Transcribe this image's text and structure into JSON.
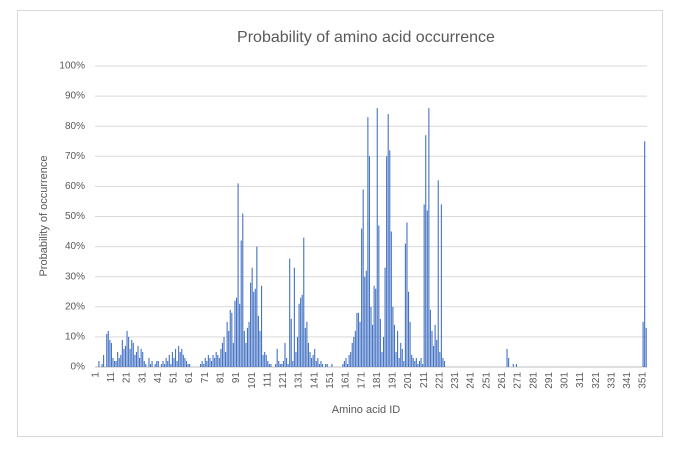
{
  "chart_data": {
    "type": "bar",
    "title": "Probability of amino acid occurrence",
    "x_label": "Amino acid ID",
    "y_label": "Probability of occurrence",
    "color": "#4472c4",
    "grid": true,
    "ylim": [
      0,
      100
    ],
    "yticks": [
      {
        "value": 0,
        "label": "0%"
      },
      {
        "value": 10,
        "label": "10%"
      },
      {
        "value": 20,
        "label": "20%"
      },
      {
        "value": 30,
        "label": "30%"
      },
      {
        "value": 40,
        "label": "40%"
      },
      {
        "value": 50,
        "label": "50%"
      },
      {
        "value": 60,
        "label": "60%"
      },
      {
        "value": 70,
        "label": "70%"
      },
      {
        "value": 80,
        "label": "80%"
      },
      {
        "value": 90,
        "label": "90%"
      },
      {
        "value": 100,
        "label": "100%"
      }
    ],
    "categories": [
      "1",
      null,
      null,
      null,
      null,
      null,
      null,
      null,
      null,
      null,
      "11",
      null,
      null,
      null,
      null,
      null,
      null,
      null,
      null,
      null,
      "21",
      null,
      null,
      null,
      null,
      null,
      null,
      null,
      null,
      null,
      "31",
      null,
      null,
      null,
      null,
      null,
      null,
      null,
      null,
      null,
      "41",
      null,
      null,
      null,
      null,
      null,
      null,
      null,
      null,
      null,
      "51",
      null,
      null,
      null,
      null,
      null,
      null,
      null,
      null,
      null,
      "61",
      null,
      null,
      null,
      null,
      null,
      null,
      null,
      null,
      null,
      "71",
      null,
      null,
      null,
      null,
      null,
      null,
      null,
      null,
      null,
      "81",
      null,
      null,
      null,
      null,
      null,
      null,
      null,
      null,
      null,
      "91",
      null,
      null,
      null,
      null,
      null,
      null,
      null,
      null,
      null,
      "101",
      null,
      null,
      null,
      null,
      null,
      null,
      null,
      null,
      null,
      "111",
      null,
      null,
      null,
      null,
      null,
      null,
      null,
      null,
      null,
      "121",
      null,
      null,
      null,
      null,
      null,
      null,
      null,
      null,
      null,
      "131",
      null,
      null,
      null,
      null,
      null,
      null,
      null,
      null,
      null,
      "141",
      null,
      null,
      null,
      null,
      null,
      null,
      null,
      null,
      null,
      "151",
      null,
      null,
      null,
      null,
      null,
      null,
      null,
      null,
      null,
      "161",
      null,
      null,
      null,
      null,
      null,
      null,
      null,
      null,
      null,
      "171",
      null,
      null,
      null,
      null,
      null,
      null,
      null,
      null,
      null,
      "181",
      null,
      null,
      null,
      null,
      null,
      null,
      null,
      null,
      null,
      "191",
      null,
      null,
      null,
      null,
      null,
      null,
      null,
      null,
      null,
      "201",
      null,
      null,
      null,
      null,
      null,
      null,
      null,
      null,
      null,
      "211",
      null,
      null,
      null,
      null,
      null,
      null,
      null,
      null,
      null,
      "221",
      null,
      null,
      null,
      null,
      null,
      null,
      null,
      null,
      null,
      "231",
      null,
      null,
      null,
      null,
      null,
      null,
      null,
      null,
      null,
      "241",
      null,
      null,
      null,
      null,
      null,
      null,
      null,
      null,
      null,
      "251",
      null,
      null,
      null,
      null,
      null,
      null,
      null,
      null,
      null,
      "261",
      null,
      null,
      null,
      null,
      null,
      null,
      null,
      null,
      null,
      "271",
      null,
      null,
      null,
      null,
      null,
      null,
      null,
      null,
      null,
      "281",
      null,
      null,
      null,
      null,
      null,
      null,
      null,
      null,
      null,
      "291",
      null,
      null,
      null,
      null,
      null,
      null,
      null,
      null,
      null,
      "301",
      null,
      null,
      null,
      null,
      null,
      null,
      null,
      null,
      null,
      "311",
      null,
      null,
      null,
      null,
      null,
      null,
      null,
      null,
      null,
      "321",
      null,
      null,
      null,
      null,
      null,
      null,
      null,
      null,
      null,
      "331",
      null,
      null,
      null,
      null,
      null,
      null,
      null,
      null,
      null,
      "341",
      null,
      null,
      null,
      null,
      null,
      null,
      null,
      null,
      null,
      "351",
      null,
      null
    ],
    "values": [
      0,
      0,
      2,
      0,
      1,
      4,
      0,
      11,
      12,
      9,
      8,
      3,
      2,
      2,
      5,
      3,
      4,
      9,
      6,
      7,
      12,
      10,
      6,
      9,
      8,
      4,
      5,
      7,
      3,
      6,
      5,
      2,
      1,
      0,
      3,
      1,
      2,
      0,
      1,
      2,
      2,
      0,
      1,
      2,
      1,
      3,
      2,
      4,
      1,
      5,
      3,
      6,
      2,
      7,
      5,
      6,
      4,
      3,
      2,
      1,
      1,
      0,
      0,
      0,
      0,
      0,
      0,
      1,
      2,
      1,
      3,
      2,
      4,
      3,
      2,
      4,
      3,
      5,
      4,
      3,
      6,
      8,
      10,
      5,
      15,
      12,
      19,
      18,
      8,
      22,
      23,
      61,
      21,
      42,
      51,
      12,
      8,
      13,
      15,
      28,
      33,
      25,
      26,
      40,
      17,
      12,
      27,
      4,
      5,
      4,
      2,
      1,
      1,
      0,
      0,
      1,
      6,
      2,
      1,
      1,
      2,
      8,
      3,
      1,
      36,
      16,
      2,
      33,
      5,
      10,
      21,
      23,
      24,
      43,
      13,
      15,
      8,
      5,
      3,
      4,
      6,
      2,
      3,
      1,
      2,
      1,
      0,
      1,
      1,
      0,
      0,
      1,
      0,
      0,
      0,
      0,
      0,
      0,
      1,
      2,
      3,
      1,
      4,
      5,
      8,
      10,
      12,
      18,
      18,
      15,
      46,
      59,
      30,
      32,
      83,
      70,
      20,
      14,
      27,
      26,
      86,
      47,
      16,
      5,
      10,
      33,
      70,
      84,
      72,
      45,
      20,
      14,
      5,
      12,
      3,
      8,
      6,
      2,
      41,
      48,
      25,
      15,
      4,
      3,
      2,
      3,
      1,
      2,
      3,
      1,
      54,
      77,
      52,
      86,
      19,
      12,
      7,
      14,
      9,
      62,
      5,
      54,
      3,
      2,
      0,
      0,
      0,
      0,
      0,
      0,
      0,
      0,
      0,
      0,
      0,
      0,
      0,
      0,
      0,
      0,
      0,
      0,
      0,
      0,
      0,
      0,
      0,
      0,
      0,
      0,
      0,
      0,
      0,
      0,
      0,
      0,
      0,
      0,
      0,
      0,
      0,
      0,
      0,
      6,
      3,
      0,
      0,
      1,
      0,
      1,
      0,
      0,
      0,
      0,
      0,
      0,
      0,
      0,
      0,
      0,
      0,
      0,
      0,
      0,
      0,
      0,
      0,
      0,
      0,
      0,
      0,
      0,
      0,
      0,
      0,
      0,
      0,
      0,
      0,
      0,
      0,
      0,
      0,
      0,
      0,
      0,
      0,
      0,
      0,
      0,
      0,
      0,
      0,
      0,
      0,
      0,
      0,
      0,
      0,
      0,
      0,
      0,
      0,
      0,
      0,
      0,
      0,
      0,
      0,
      0,
      0,
      0,
      0,
      0,
      0,
      0,
      0,
      0,
      0,
      0,
      0,
      0,
      0,
      0,
      0,
      0,
      0,
      0,
      0,
      0,
      15,
      75,
      13
    ]
  }
}
